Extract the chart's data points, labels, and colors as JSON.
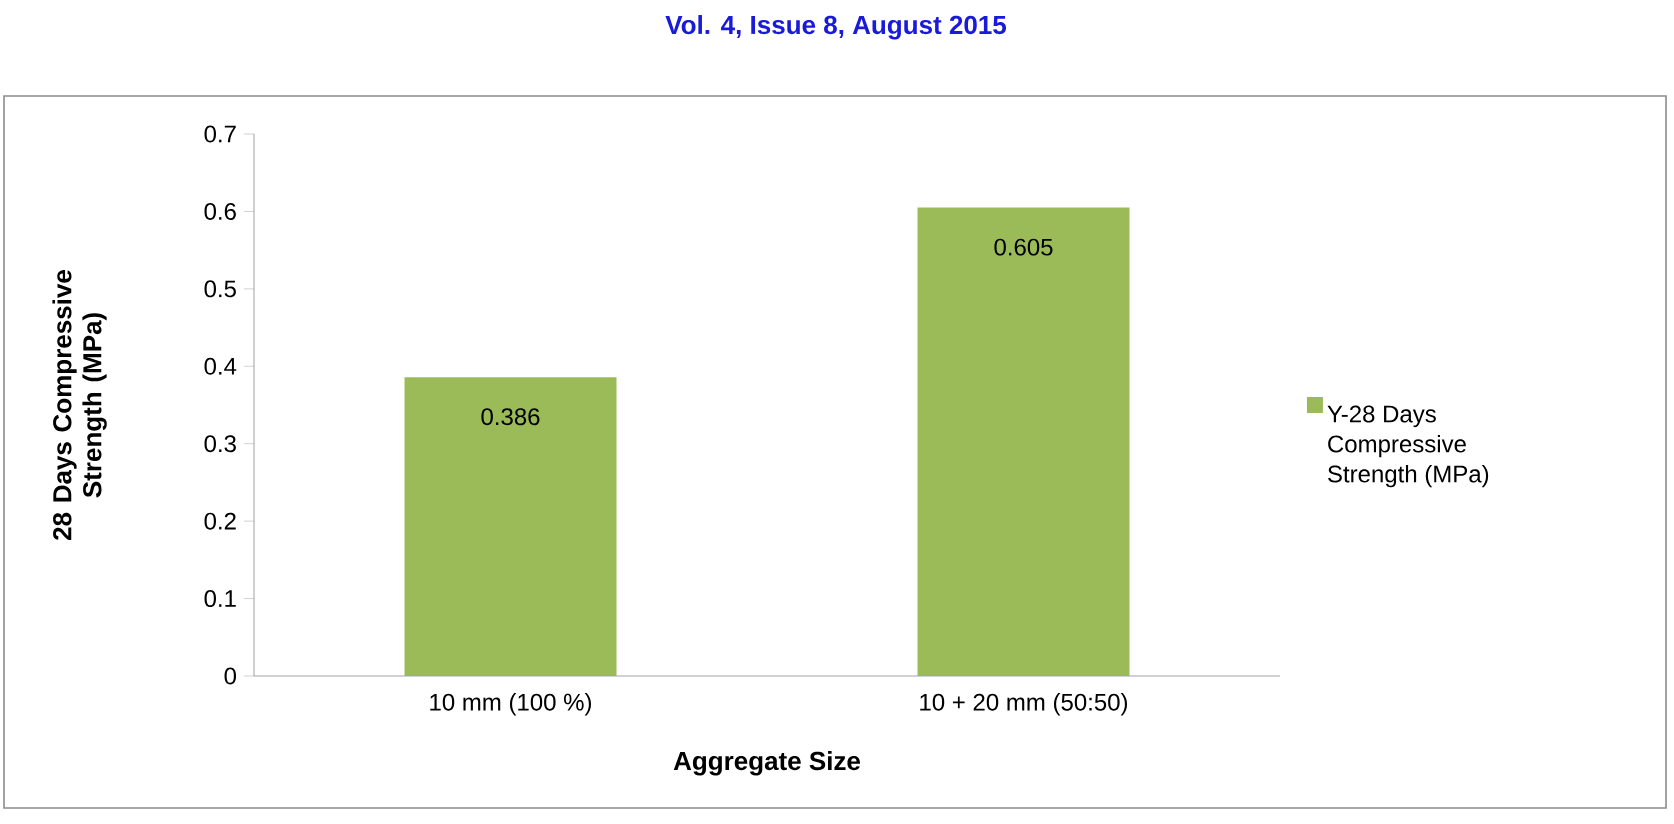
{
  "chart_data": {
    "type": "bar",
    "annotations": [
      "Vol. 4, Issue 8, August 2015"
    ],
    "xlabel": "Aggregate Size",
    "ylabel": "28 Days Compressive Strength (MPa)",
    "categories": [
      "10 mm (100 %)",
      "10 + 20 mm (50:50)"
    ],
    "series": [
      {
        "name": "Y-28 Days Compressive Strength (MPa)",
        "color": "#9bbb59",
        "values": [
          0.386,
          0.605
        ]
      }
    ],
    "ylim": [
      0,
      0.7
    ],
    "yticks": [
      0,
      0.1,
      0.2,
      0.3,
      0.4,
      0.5,
      0.6,
      0.7
    ],
    "data_labels": true,
    "grid": false,
    "legend": "right"
  }
}
